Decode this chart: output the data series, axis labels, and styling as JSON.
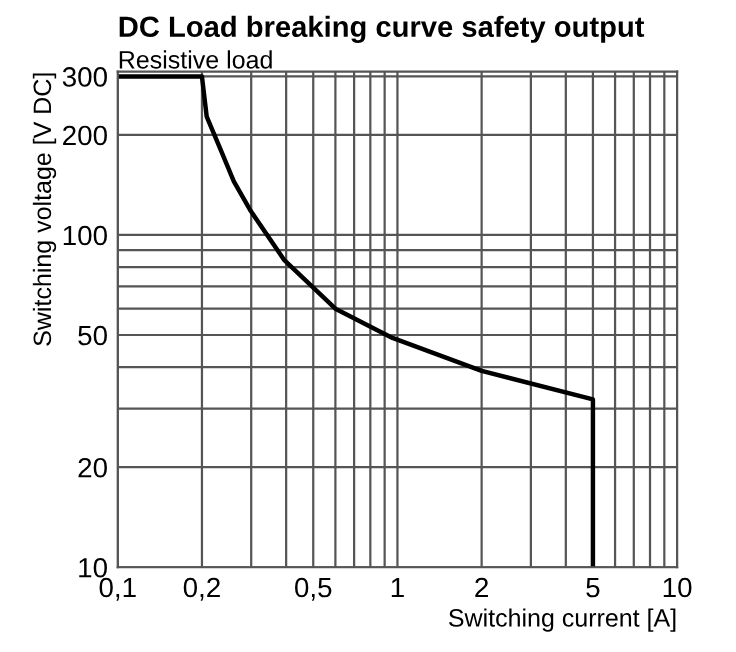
{
  "chart_data": {
    "type": "line",
    "title": "DC Load breaking curve safety output",
    "subtitle": "Resistive load",
    "xlabel": "Switching current [A]",
    "ylabel": "Switching voltage [V DC]",
    "log": "xy",
    "grid": true,
    "legend": false,
    "marker": "none",
    "line_style": "solid",
    "series": [
      {
        "color": "#000000",
        "x": [
          0.1,
          0.2,
          0.208,
          0.233,
          0.26,
          0.299,
          0.394,
          0.6,
          0.96,
          2.0,
          5.0,
          5.0
        ],
        "values": [
          300,
          300,
          227,
          181,
          145,
          118,
          84,
          60,
          49,
          39,
          32,
          10
        ]
      }
    ],
    "xlim": [
      0.1,
      10
    ],
    "ylim": [
      10,
      310
    ],
    "xticks": [
      {
        "value": 0.1,
        "label": "0,1"
      },
      {
        "value": 0.2,
        "label": "0,2"
      },
      {
        "value": 0.3,
        "label": null
      },
      {
        "value": 0.4,
        "label": null
      },
      {
        "value": 0.5,
        "label": "0,5"
      },
      {
        "value": 0.6,
        "label": null
      },
      {
        "value": 0.7,
        "label": null
      },
      {
        "value": 0.8,
        "label": null
      },
      {
        "value": 0.9,
        "label": null
      },
      1,
      2,
      {
        "value": 3,
        "label": null
      },
      {
        "value": 4,
        "label": null
      },
      5,
      {
        "value": 6,
        "label": null
      },
      {
        "value": 7,
        "label": null
      },
      {
        "value": 8,
        "label": null
      },
      {
        "value": 9,
        "label": null
      },
      10
    ],
    "yticks": [
      10,
      20,
      {
        "value": 30,
        "label": null
      },
      {
        "value": 40,
        "label": null
      },
      50,
      {
        "value": 60,
        "label": null
      },
      {
        "value": 70,
        "label": null
      },
      {
        "value": 80,
        "label": null
      },
      {
        "value": 90,
        "label": null
      },
      100,
      200,
      300
    ]
  }
}
